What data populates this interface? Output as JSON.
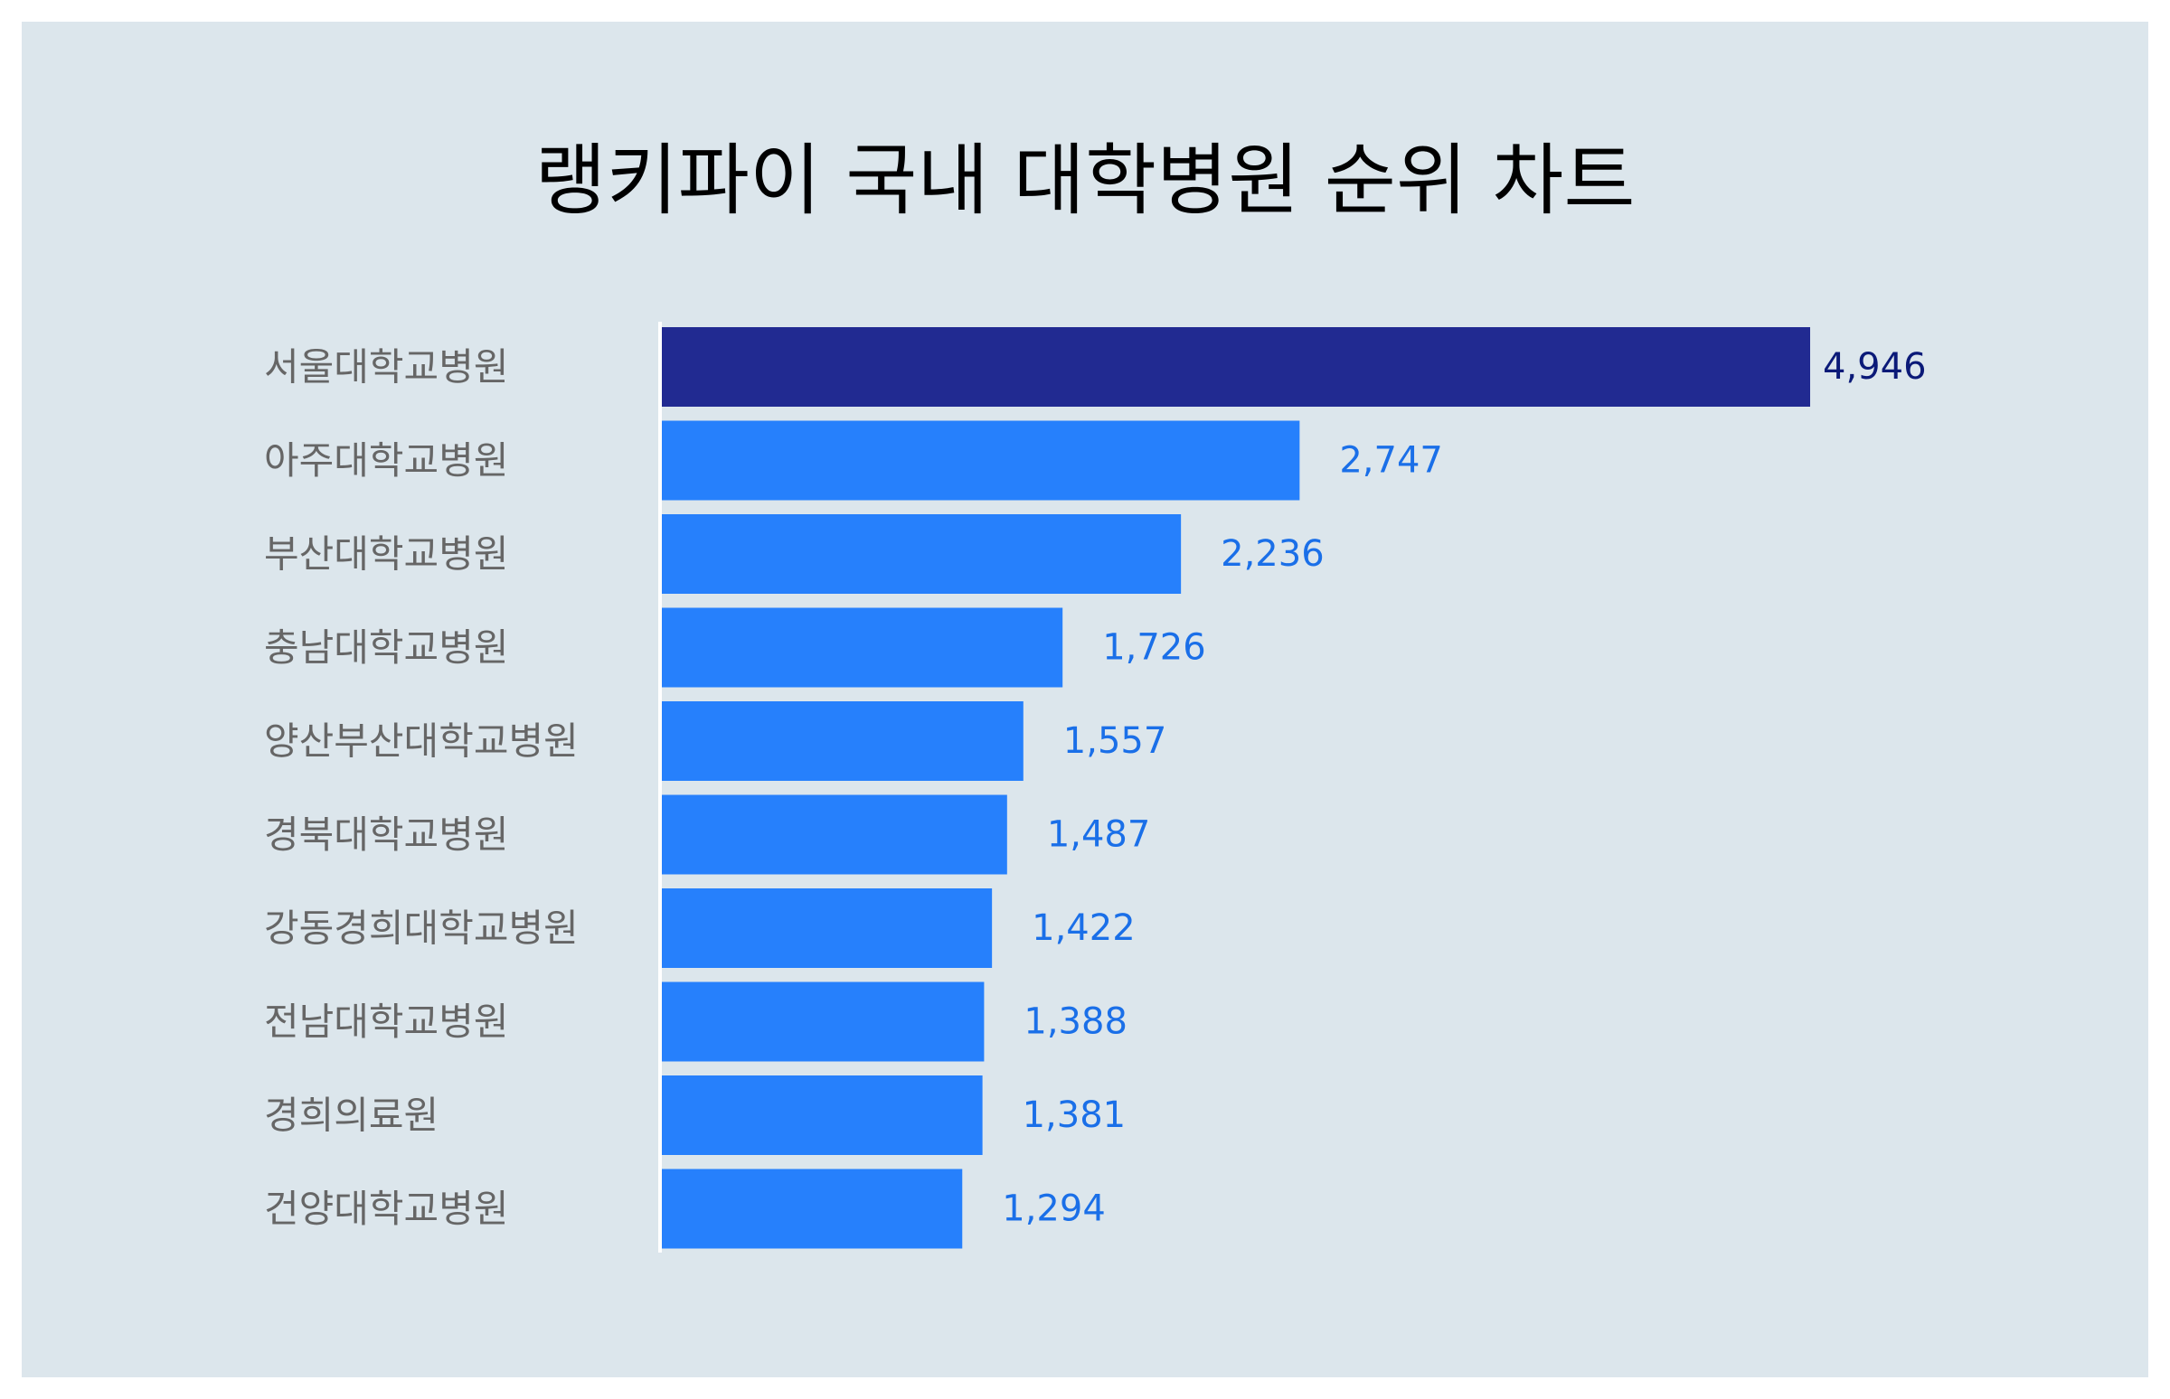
{
  "chart_data": {
    "type": "bar",
    "orientation": "horizontal",
    "title": "랭키파이 국내 대학병원 순위 차트",
    "categories": [
      "서울대학교병원",
      "아주대학교병원",
      "부산대학교병원",
      "충남대학교병원",
      "양산부산대학교병원",
      "경북대학교병원",
      "강동경희대학교병원",
      "전남대학교병원",
      "경희의료원",
      "건양대학교병원"
    ],
    "values": [
      4946,
      2747,
      2236,
      1726,
      1557,
      1487,
      1422,
      1388,
      1381,
      1294
    ],
    "value_labels": [
      "4,946",
      "2,747",
      "2,236",
      "1,726",
      "1,557",
      "1,487",
      "1,422",
      "1,388",
      "1,381",
      "1,294"
    ],
    "xlim": [
      0,
      4946
    ],
    "grid": false,
    "legend": "none",
    "colors": {
      "background": "#dce6ec",
      "bar_top": "#212a91",
      "bar_default": "#2680fc",
      "label_top": "#0b1a78",
      "label_default": "#1a6fe8",
      "category_text": "#666666",
      "axis": "#ffffff"
    }
  }
}
